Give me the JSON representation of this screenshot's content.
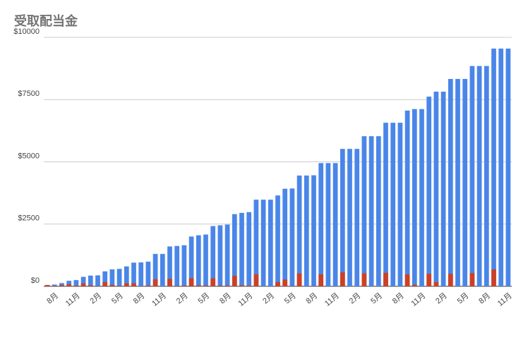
{
  "chart_data": {
    "type": "bar",
    "title": "受取配当金",
    "categories": [
      null,
      "8月",
      null,
      null,
      "11月",
      null,
      null,
      "2月",
      null,
      null,
      "5月",
      null,
      null,
      "8月",
      null,
      null,
      "11月",
      null,
      null,
      "2月",
      null,
      null,
      "5月",
      null,
      null,
      "8月",
      null,
      null,
      "11月",
      null,
      null,
      "2月",
      null,
      null,
      "5月",
      null,
      null,
      "8月",
      null,
      null,
      "11月",
      null,
      null,
      "2月",
      null,
      null,
      "5月",
      null,
      null,
      "8月",
      null,
      null,
      "11月",
      null,
      null,
      "2月",
      null,
      null,
      "5月",
      null,
      null,
      "8月",
      null,
      null,
      "11月"
    ],
    "series": [
      {
        "color": "#4a86e8",
        "values": [
          50,
          70,
          130,
          220,
          250,
          380,
          430,
          440,
          600,
          680,
          700,
          800,
          950,
          960,
          990,
          1300,
          1300,
          1600,
          1620,
          1650,
          2000,
          2050,
          2080,
          2420,
          2450,
          2480,
          2900,
          2950,
          2980,
          3480,
          3480,
          3480,
          3650,
          3920,
          3930,
          4450,
          4450,
          4460,
          4950,
          4950,
          4950,
          5520,
          5520,
          5520,
          6030,
          6030,
          6030,
          6570,
          6570,
          6570,
          7060,
          7120,
          7120,
          7620,
          7820,
          7820,
          8330,
          8330,
          8330,
          8850,
          8850,
          8850,
          9550,
          9550,
          9550
        ]
      },
      {
        "color": "#cc4125",
        "values": [
          50,
          20,
          50,
          80,
          30,
          120,
          40,
          10,
          170,
          60,
          20,
          120,
          120,
          10,
          30,
          280,
          0,
          300,
          20,
          30,
          330,
          40,
          30,
          320,
          30,
          30,
          420,
          40,
          30,
          480,
          0,
          0,
          170,
          270,
          10,
          520,
          0,
          10,
          480,
          0,
          0,
          560,
          0,
          0,
          520,
          0,
          0,
          540,
          0,
          0,
          480,
          60,
          0,
          500,
          170,
          0,
          500,
          0,
          0,
          530,
          0,
          0,
          680,
          0,
          0
        ]
      }
    ],
    "ylim": [
      0,
      10000
    ],
    "yticks": [
      {
        "value": 0,
        "label": "$0"
      },
      {
        "value": 2500,
        "label": "$2500"
      },
      {
        "value": 5000,
        "label": "$5000"
      },
      {
        "value": 7500,
        "label": "$7500"
      },
      {
        "value": 10000,
        "label": "$10000"
      }
    ],
    "grid": true
  }
}
